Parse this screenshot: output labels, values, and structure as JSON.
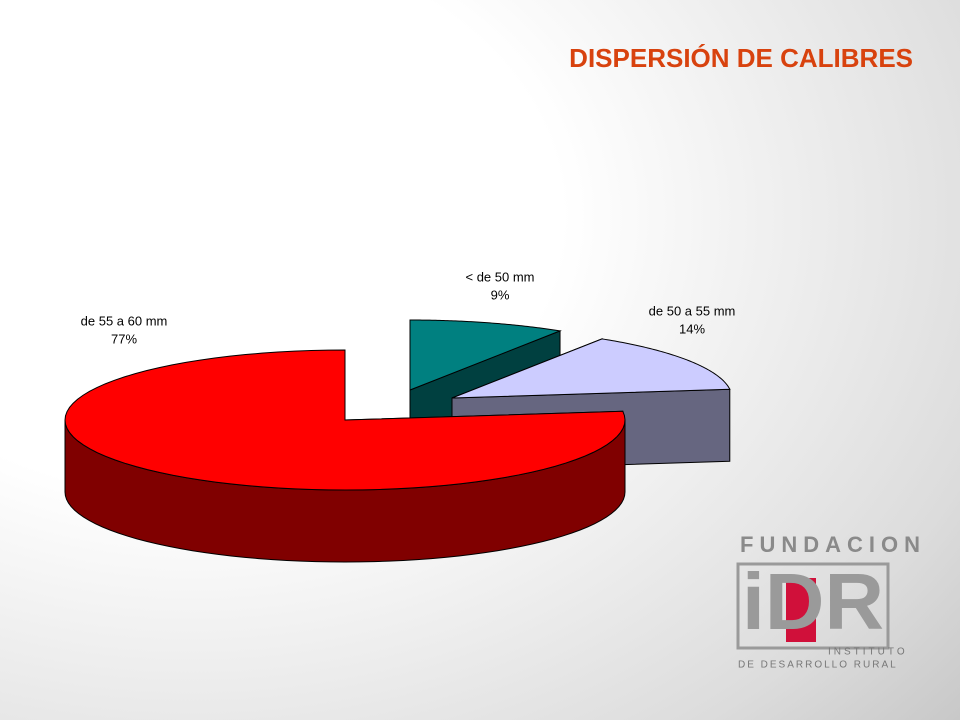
{
  "chart_data": {
    "type": "pie",
    "title": "DISPERSIÓN DE CALIBRES",
    "categories": [
      "< de 50 mm",
      "de 50 a 55 mm",
      "de 55 a 60 mm"
    ],
    "values": [
      9,
      14,
      77
    ],
    "value_labels": [
      "9%",
      "14%",
      "77%"
    ],
    "colors": [
      "#008080",
      "#ccccff",
      "#ff0000"
    ]
  },
  "logo": {
    "top": "FUNDACION",
    "mark": "iDR",
    "line1": "INSTITUTO",
    "line2": "DE DESARROLLO RURAL"
  }
}
